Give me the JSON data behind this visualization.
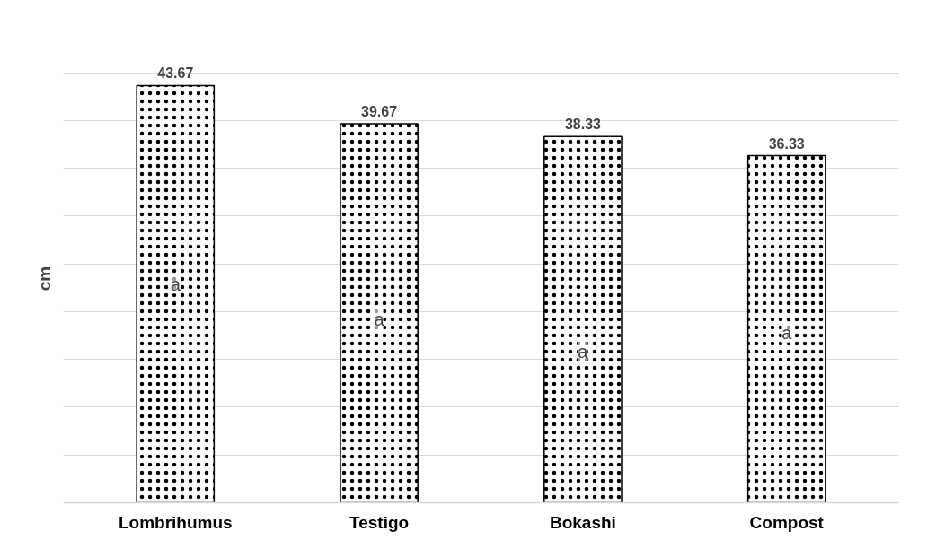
{
  "chart_data": {
    "type": "bar",
    "ylabel": "cm",
    "categories": [
      "Lombrihumus",
      "Testigo",
      "Bokashi",
      "Compost"
    ],
    "values": [
      43.67,
      39.67,
      38.33,
      36.33
    ],
    "color": "#ffffff",
    "data_labels": true,
    "tick_labels": "x",
    "grid": "y",
    "annotations": [
      {
        "text": "a",
        "x": "Lombrihumus",
        "y": 22.9
      },
      {
        "text": "a",
        "x": "Testigo",
        "y": 19.2
      },
      {
        "text": "a",
        "x": "Bokashi",
        "y": 15.8
      },
      {
        "text": "a",
        "x": "Compost",
        "y": 17.8
      }
    ]
  }
}
